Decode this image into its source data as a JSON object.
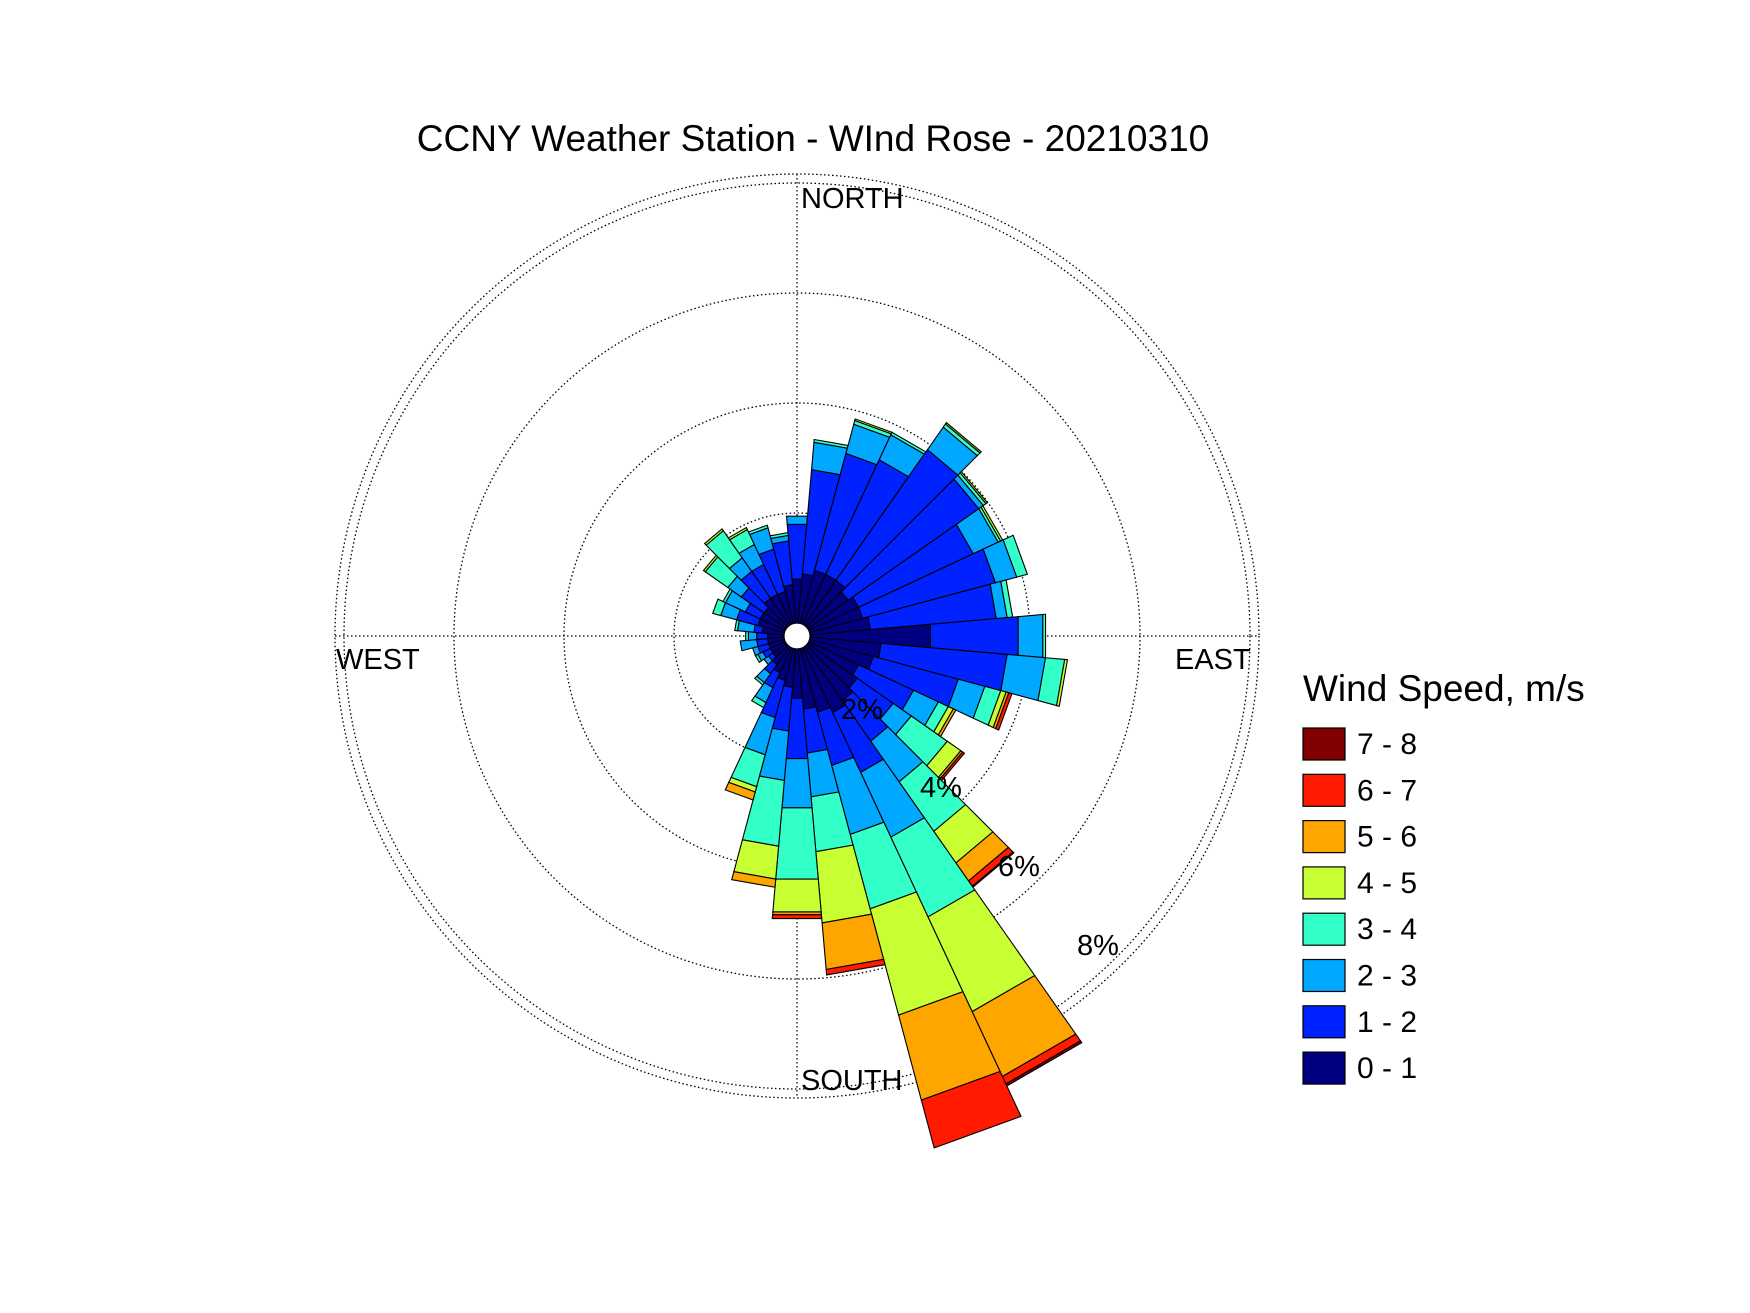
{
  "chart_data": {
    "type": "wind-rose",
    "title": "CCNY Weather Station - WInd Rose - 20210310",
    "directions": {
      "north": "NORTH",
      "south": "SOUTH",
      "east": "EAST",
      "west": "WEST"
    },
    "rings": [
      2,
      4,
      6,
      8
    ],
    "ring_labels": [
      "2%",
      "4%",
      "6%",
      "8%"
    ],
    "unit": "%",
    "legend": {
      "title": "Wind Speed, m/s",
      "placement": "right",
      "bins": [
        {
          "label": "7 - 8",
          "color": "#800000"
        },
        {
          "label": "6 - 7",
          "color": "#ff1a00"
        },
        {
          "label": "5 - 6",
          "color": "#ffa500"
        },
        {
          "label": "4 - 5",
          "color": "#c8ff33"
        },
        {
          "label": "3 - 4",
          "color": "#33ffc8"
        },
        {
          "label": "2 - 3",
          "color": "#00a8ff"
        },
        {
          "label": "1 - 2",
          "color": "#0022ff"
        },
        {
          "label": "0 - 1",
          "color": "#000080"
        }
      ]
    },
    "sector_width_deg": 10,
    "stack_order": [
      "0 - 1",
      "1 - 2",
      "2 - 3",
      "3 - 4",
      "4 - 5",
      "5 - 6",
      "6 - 7",
      "7 - 8"
    ],
    "sectors": [
      {
        "dir": 0,
        "values": [
          0.8,
          1.0,
          0.15,
          0,
          0,
          0,
          0,
          0
        ]
      },
      {
        "dir": 10,
        "values": [
          0.9,
          1.9,
          0.5,
          0.05,
          0,
          0,
          0,
          0
        ]
      },
      {
        "dir": 20,
        "values": [
          1.0,
          2.2,
          0.55,
          0.07,
          0.03,
          0,
          0,
          0
        ]
      },
      {
        "dir": 30,
        "values": [
          1.0,
          2.3,
          0.5,
          0.05,
          0,
          0,
          0,
          0
        ]
      },
      {
        "dir": 40,
        "values": [
          1.0,
          2.9,
          0.5,
          0.07,
          0.03,
          0,
          0,
          0
        ]
      },
      {
        "dir": 50,
        "values": [
          0.9,
          2.9,
          0.1,
          0.06,
          0.03,
          0,
          0,
          0
        ]
      },
      {
        "dir": 60,
        "values": [
          1.0,
          2.3,
          0.5,
          0.05,
          0.04,
          0,
          0,
          0
        ]
      },
      {
        "dir": 70,
        "values": [
          1.0,
          2.5,
          0.4,
          0.2,
          0,
          0,
          0,
          0
        ]
      },
      {
        "dir": 80,
        "values": [
          1.1,
          2.3,
          0.2,
          0.1,
          0,
          0,
          0,
          0
        ]
      },
      {
        "dir": 90,
        "values": [
          2.2,
          1.6,
          0.45,
          0.05,
          0,
          0,
          0,
          0
        ]
      },
      {
        "dir": 100,
        "values": [
          1.3,
          2.3,
          0.7,
          0.35,
          0.05,
          0,
          0,
          0
        ]
      },
      {
        "dir": 110,
        "values": [
          1.2,
          1.6,
          0.5,
          0.3,
          0.1,
          0.05,
          0.06,
          0
        ]
      },
      {
        "dir": 120,
        "values": [
          1.0,
          1.1,
          0.5,
          0.2,
          0.1,
          0.05,
          0,
          0
        ]
      },
      {
        "dir": 130,
        "values": [
          1.1,
          0.8,
          0.4,
          0.8,
          0.3,
          0.04,
          0.04,
          0
        ]
      },
      {
        "dir": 140,
        "values": [
          1.2,
          0.9,
          0.9,
          1.1,
          0.7,
          0.4,
          0.12,
          0.02
        ]
      },
      {
        "dir": 150,
        "values": [
          1.3,
          1.2,
          1.3,
          1.6,
          1.9,
          1.3,
          0.15,
          0.04
        ]
      },
      {
        "dir": 160,
        "values": [
          1.2,
          1.0,
          1.3,
          1.4,
          2.0,
          1.6,
          0.9,
          0
        ]
      },
      {
        "dir": 170,
        "values": [
          1.1,
          0.8,
          0.8,
          1.0,
          1.3,
          0.85,
          0.1,
          0
        ]
      },
      {
        "dir": 180,
        "values": [
          0.9,
          1.1,
          0.9,
          1.3,
          0.6,
          0.05,
          0.07,
          0
        ]
      },
      {
        "dir": 190,
        "values": [
          0.7,
          0.8,
          0.9,
          1.2,
          0.6,
          0.15,
          0,
          0
        ]
      },
      {
        "dir": 200,
        "values": [
          0.6,
          0.7,
          0.7,
          0.6,
          0.1,
          0.15,
          0,
          0
        ]
      },
      {
        "dir": 210,
        "values": [
          0.5,
          0.3,
          0.3,
          0.1,
          0,
          0,
          0,
          0
        ]
      },
      {
        "dir": 220,
        "values": [
          0.4,
          0.2,
          0.2,
          0.05,
          0,
          0,
          0,
          0
        ]
      },
      {
        "dir": 230,
        "values": [
          0.3,
          0.1,
          0.1,
          0,
          0,
          0,
          0,
          0
        ]
      },
      {
        "dir": 240,
        "values": [
          0.3,
          0.15,
          0.1,
          0.05,
          0,
          0,
          0,
          0
        ]
      },
      {
        "dir": 250,
        "values": [
          0.3,
          0.2,
          0.1,
          0,
          0,
          0,
          0,
          0
        ]
      },
      {
        "dir": 260,
        "values": [
          0.3,
          0.2,
          0.3,
          0.0,
          0,
          0,
          0,
          0
        ]
      },
      {
        "dir": 270,
        "values": [
          0.3,
          0.2,
          0.15,
          0.05,
          0,
          0,
          0,
          0
        ]
      },
      {
        "dir": 280,
        "values": [
          0.4,
          0.15,
          0.3,
          0.05,
          0,
          0,
          0,
          0
        ]
      },
      {
        "dir": 290,
        "values": [
          0.5,
          0.4,
          0.3,
          0.15,
          0,
          0,
          0,
          0
        ]
      },
      {
        "dir": 300,
        "values": [
          0.5,
          0.3,
          0.4,
          0.05,
          0,
          0,
          0,
          0
        ]
      },
      {
        "dir": 310,
        "values": [
          0.5,
          0.5,
          0.3,
          0.5,
          0.04,
          0,
          0,
          0
        ]
      },
      {
        "dir": 320,
        "values": [
          0.6,
          0.6,
          0.3,
          0.6,
          0.04,
          0,
          0,
          0
        ]
      },
      {
        "dir": 330,
        "values": [
          0.6,
          0.6,
          0.4,
          0.3,
          0.04,
          0,
          0,
          0
        ]
      },
      {
        "dir": 340,
        "values": [
          0.6,
          0.8,
          0.4,
          0.05,
          0,
          0,
          0,
          0
        ]
      },
      {
        "dir": 350,
        "values": [
          0.7,
          0.8,
          0.1,
          0.05,
          0,
          0,
          0,
          0
        ]
      }
    ]
  }
}
